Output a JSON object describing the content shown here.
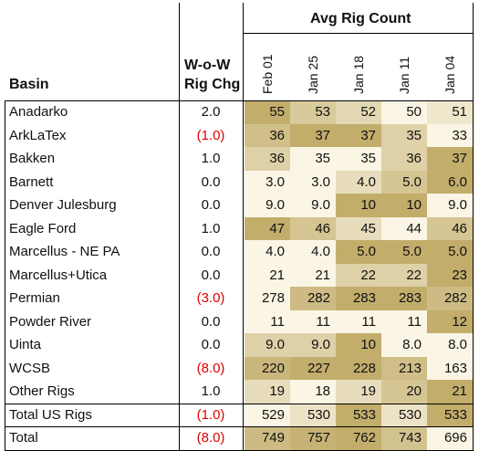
{
  "headers": {
    "basin": "Basin",
    "wow_line1": "W-o-W",
    "wow_line2": "Rig Chg",
    "avg": "Avg Rig Count",
    "weeks": [
      "Feb 01",
      "Jan 25",
      "Jan 18",
      "Jan 11",
      "Jan 04"
    ]
  },
  "heat_colors": {
    "low": "#faf5e4",
    "high": "#c2ad6b"
  },
  "chart_data": {
    "type": "table",
    "title": "Avg Rig Count",
    "columns": [
      "Basin",
      "W-o-W Rig Chg",
      "Feb 01",
      "Jan 25",
      "Jan 18",
      "Jan 11",
      "Jan 04"
    ],
    "rows": [
      {
        "basin": "Anadarko",
        "chg": "2.0",
        "values": [
          "55",
          "53",
          "52",
          "50",
          "51"
        ]
      },
      {
        "basin": "ArkLaTex",
        "chg": "(1.0)",
        "values": [
          "36",
          "37",
          "37",
          "35",
          "33"
        ]
      },
      {
        "basin": "Bakken",
        "chg": "1.0",
        "values": [
          "36",
          "35",
          "35",
          "36",
          "37"
        ]
      },
      {
        "basin": "Barnett",
        "chg": "0.0",
        "values": [
          "3.0",
          "3.0",
          "4.0",
          "5.0",
          "6.0"
        ]
      },
      {
        "basin": "Denver Julesburg",
        "chg": "0.0",
        "values": [
          "9.0",
          "9.0",
          "10",
          "10",
          "9.0"
        ]
      },
      {
        "basin": "Eagle Ford",
        "chg": "1.0",
        "values": [
          "47",
          "46",
          "45",
          "44",
          "46"
        ]
      },
      {
        "basin": "Marcellus - NE PA",
        "chg": "0.0",
        "values": [
          "4.0",
          "4.0",
          "5.0",
          "5.0",
          "5.0"
        ]
      },
      {
        "basin": "Marcellus+Utica",
        "chg": "0.0",
        "values": [
          "21",
          "21",
          "22",
          "22",
          "23"
        ]
      },
      {
        "basin": "Permian",
        "chg": "(3.0)",
        "values": [
          "278",
          "282",
          "283",
          "283",
          "282"
        ]
      },
      {
        "basin": "Powder River",
        "chg": "0.0",
        "values": [
          "11",
          "11",
          "11",
          "11",
          "12"
        ]
      },
      {
        "basin": "Uinta",
        "chg": "0.0",
        "values": [
          "9.0",
          "9.0",
          "10",
          "8.0",
          "8.0"
        ]
      },
      {
        "basin": "WCSB",
        "chg": "(8.0)",
        "values": [
          "220",
          "227",
          "228",
          "213",
          "163"
        ]
      },
      {
        "basin": "Other Rigs",
        "chg": "1.0",
        "values": [
          "19",
          "18",
          "19",
          "20",
          "21"
        ]
      },
      {
        "basin": "Total US Rigs",
        "chg": "(1.0)",
        "values": [
          "529",
          "530",
          "533",
          "530",
          "533"
        ]
      },
      {
        "basin": "Total",
        "chg": "(8.0)",
        "values": [
          "749",
          "757",
          "762",
          "743",
          "696"
        ]
      }
    ]
  }
}
